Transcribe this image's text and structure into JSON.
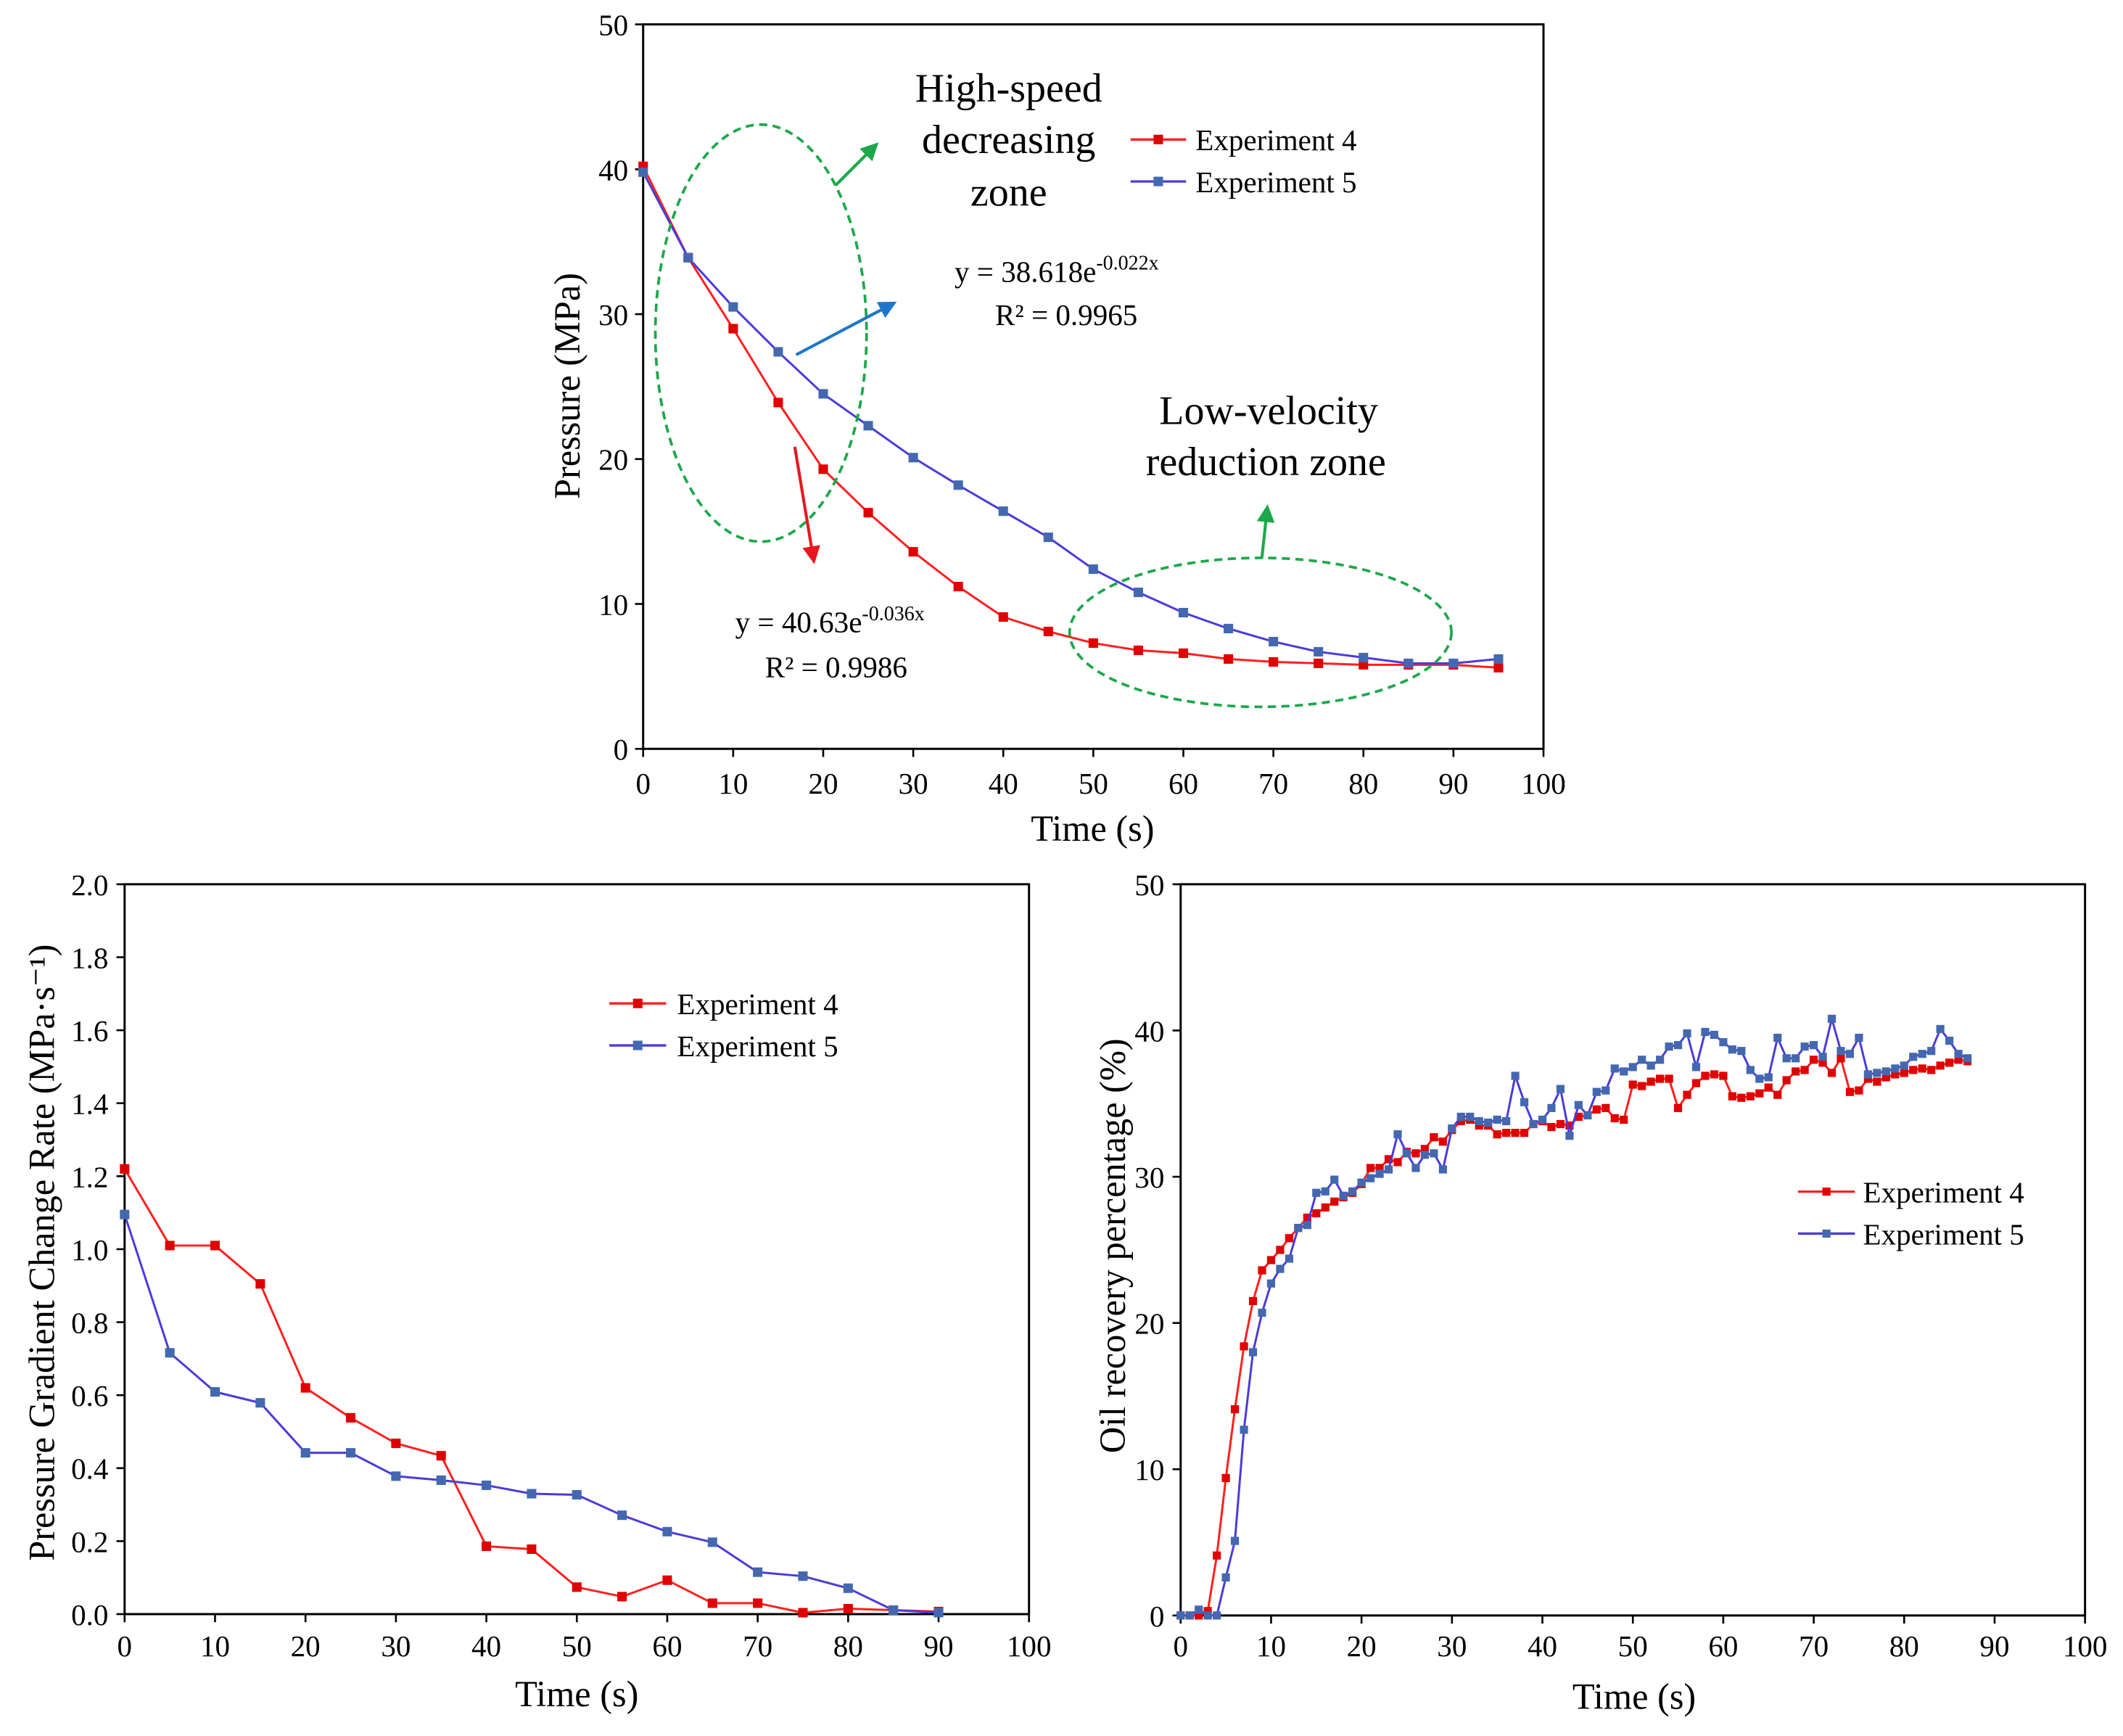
{
  "chart_data": [
    {
      "type": "line",
      "xlabel": "Time (s)",
      "ylabel": "Pressure (MPa)",
      "xlim": [
        0,
        100
      ],
      "ylim": [
        0,
        50
      ],
      "xticks": [
        "0",
        "10",
        "20",
        "30",
        "40",
        "50",
        "60",
        "70",
        "80",
        "90",
        "100"
      ],
      "yticks": [
        "0",
        "10",
        "20",
        "30",
        "40",
        "50"
      ],
      "grid": false,
      "legend_position": "top-right",
      "x": [
        0,
        5,
        10,
        15,
        20,
        25,
        30,
        35,
        40,
        45,
        50,
        55,
        60,
        65,
        70,
        75,
        80,
        85,
        90,
        95
      ],
      "series": [
        {
          "name": "Experiment 4",
          "line_color": "#ff1f1f",
          "marker_color": "#e00000",
          "values": [
            40.2,
            33.9,
            29.0,
            23.9,
            19.3,
            16.3,
            13.6,
            11.2,
            9.1,
            8.1,
            7.3,
            6.8,
            6.6,
            6.2,
            6.0,
            5.9,
            5.8,
            5.8,
            5.8,
            5.6
          ]
        },
        {
          "name": "Experiment 5",
          "line_color": "#4a3bd9",
          "marker_color": "#4468b0",
          "values": [
            39.8,
            33.9,
            30.5,
            27.4,
            24.5,
            22.3,
            20.1,
            18.2,
            16.4,
            14.6,
            12.4,
            10.8,
            9.4,
            8.3,
            7.4,
            6.7,
            6.3,
            5.9,
            5.9,
            6.2
          ]
        }
      ],
      "annotations": {
        "zone_color": "#1ca84b",
        "high_speed_zone": [
          "High-speed",
          "decreasing",
          "zone"
        ],
        "low_velocity_zone": [
          "Low-velocity",
          "reduction zone"
        ],
        "exp5_fit": {
          "arrow_color": "#1d76c8",
          "equation": "y = 38.618e",
          "exponent": "-0.022x",
          "r_squared": "R² = 0.9965"
        },
        "exp4_fit": {
          "arrow_color": "#e8161e",
          "equation": "y = 40.63e",
          "exponent": "-0.036x",
          "r_squared": "R² = 0.9986"
        }
      }
    },
    {
      "type": "line",
      "xlabel": "Time (s)",
      "ylabel": "Pressure Gradient Change Rate (MPa·s⁻¹)",
      "xlim": [
        0,
        100
      ],
      "ylim": [
        0,
        2.0
      ],
      "xticks": [
        "0",
        "10",
        "20",
        "30",
        "40",
        "50",
        "60",
        "70",
        "80",
        "90",
        "100"
      ],
      "yticks": [
        "0.0",
        "0.2",
        "0.4",
        "0.6",
        "0.8",
        "1.0",
        "1.2",
        "1.4",
        "1.6",
        "1.8",
        "2.0"
      ],
      "grid": false,
      "legend_position": "top-center",
      "x": [
        0,
        5,
        10,
        15,
        20,
        25,
        30,
        35,
        40,
        45,
        50,
        55,
        60,
        65,
        70,
        75,
        80,
        85,
        90
      ],
      "series": [
        {
          "name": "Experiment 4",
          "line_color": "#ff1f1f",
          "marker_color": "#e00000",
          "values": [
            1.22,
            1.01,
            1.01,
            0.905,
            0.62,
            0.538,
            0.468,
            0.434,
            0.186,
            0.178,
            0.074,
            0.048,
            0.093,
            0.03,
            0.03,
            0.004,
            0.015,
            0.011,
            0.007
          ]
        },
        {
          "name": "Experiment 5",
          "line_color": "#4a3bd9",
          "marker_color": "#4468b0",
          "values": [
            1.095,
            0.716,
            0.609,
            0.579,
            0.442,
            0.442,
            0.378,
            0.367,
            0.353,
            0.33,
            0.327,
            0.271,
            0.226,
            0.197,
            0.115,
            0.104,
            0.071,
            0.011,
            0.004
          ]
        }
      ]
    },
    {
      "type": "line",
      "xlabel": "Time (s)",
      "ylabel": "Oil recovery percentage (%)",
      "xlim": [
        0,
        100
      ],
      "ylim": [
        0,
        50
      ],
      "xticks": [
        "0",
        "10",
        "20",
        "30",
        "40",
        "50",
        "60",
        "70",
        "80",
        "90",
        "100"
      ],
      "yticks": [
        "0",
        "10",
        "20",
        "30",
        "40",
        "50"
      ],
      "grid": false,
      "legend_position": "center-right",
      "x": [
        0,
        1,
        2,
        3,
        4,
        5,
        6,
        7,
        8,
        9,
        10,
        11,
        12,
        13,
        14,
        15,
        16,
        17,
        18,
        19,
        20,
        21,
        22,
        23,
        24,
        25,
        26,
        27,
        28,
        29,
        30,
        31,
        32,
        33,
        34,
        35,
        36,
        37,
        38,
        39,
        40,
        41,
        42,
        43,
        44,
        45,
        46,
        47,
        48,
        49,
        50,
        51,
        52,
        53,
        54,
        55,
        56,
        57,
        58,
        59,
        60,
        61,
        62,
        63,
        64,
        65,
        66,
        67,
        68,
        69,
        70,
        71,
        72,
        73,
        74,
        75,
        76,
        77,
        78,
        79,
        80,
        81,
        82,
        83,
        84,
        85,
        86,
        87
      ],
      "series": [
        {
          "name": "Experiment 4",
          "line_color": "#ff1f1f",
          "marker_color": "#e00000",
          "values": [
            0,
            0,
            0,
            0.3,
            4.1,
            9.4,
            14.1,
            18.4,
            21.5,
            23.6,
            24.3,
            25.0,
            25.8,
            26.5,
            27.2,
            27.5,
            27.9,
            28.3,
            28.6,
            28.9,
            29.5,
            30.6,
            30.6,
            31.2,
            31.0,
            31.7,
            31.6,
            31.9,
            32.7,
            32.4,
            33.2,
            33.8,
            33.9,
            33.5,
            33.5,
            32.9,
            33.0,
            33.0,
            33.0,
            33.6,
            33.8,
            33.4,
            33.6,
            33.5,
            34.1,
            34.2,
            34.6,
            34.7,
            34.0,
            33.9,
            36.3,
            36.2,
            36.5,
            36.7,
            36.7,
            34.7,
            35.6,
            36.4,
            36.9,
            37.0,
            36.9,
            35.5,
            35.4,
            35.5,
            35.7,
            36.1,
            35.6,
            36.6,
            37.2,
            37.3,
            38.0,
            37.8,
            37.1,
            38.1,
            35.8,
            35.9,
            36.7,
            36.5,
            36.8,
            37.0,
            37.1,
            37.3,
            37.4,
            37.3,
            37.6,
            37.8,
            38.0,
            37.9
          ]
        },
        {
          "name": "Experiment 5",
          "line_color": "#4a3bd9",
          "marker_color": "#4468b0",
          "values": [
            0,
            0,
            0.4,
            0,
            0,
            2.6,
            5.1,
            12.7,
            18.0,
            20.7,
            22.7,
            23.7,
            24.4,
            26.5,
            26.7,
            28.9,
            29.0,
            29.8,
            28.7,
            29.0,
            29.6,
            29.9,
            30.2,
            30.5,
            32.9,
            31.6,
            30.6,
            31.5,
            31.6,
            30.5,
            33.3,
            34.1,
            34.1,
            33.8,
            33.7,
            33.9,
            33.8,
            36.9,
            35.1,
            33.6,
            33.9,
            34.7,
            36.0,
            32.8,
            34.9,
            34.2,
            35.8,
            35.9,
            37.4,
            37.2,
            37.5,
            38.0,
            37.6,
            38.0,
            38.9,
            39.0,
            39.8,
            37.5,
            39.9,
            39.7,
            39.2,
            38.7,
            38.6,
            37.3,
            36.7,
            36.8,
            39.5,
            38.1,
            38.1,
            38.9,
            39.0,
            38.2,
            40.8,
            38.6,
            38.4,
            39.5,
            37.0,
            37.1,
            37.2,
            37.4,
            37.6,
            38.2,
            38.4,
            38.6,
            40.1,
            39.3,
            38.4,
            38.1
          ]
        }
      ]
    }
  ]
}
